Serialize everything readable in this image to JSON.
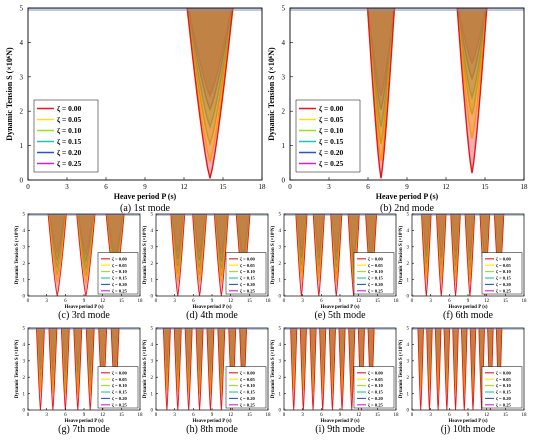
{
  "chart_data": [
    {
      "type": "area",
      "caption": "(a) 1st mode",
      "xlabel": "Heave period P (s)",
      "ylabel": "Dynamic Tension S (×10⁶N)",
      "xlim": [
        0,
        18
      ],
      "ylim": [
        0,
        5
      ],
      "xticks": [
        "0",
        "3",
        "6",
        "9",
        "12",
        "15",
        "18"
      ],
      "yticks": [
        "0",
        "1",
        "2",
        "3",
        "4",
        "5"
      ],
      "legend_placement": "left",
      "series": [
        {
          "name": "ζ = 0.00",
          "color": "#e8151b",
          "resonances": [
            {
              "x": 14.0,
              "ymin": 0.05,
              "hw": 2.3
            }
          ]
        },
        {
          "name": "ζ = 0.05",
          "color": "#ffe300",
          "resonances": [
            {
              "x": 14.0,
              "ymin": 0.55,
              "hw": 2.4
            }
          ]
        },
        {
          "name": "ζ = 0.10",
          "color": "#9be020",
          "resonances": [
            {
              "x": 14.0,
              "ymin": 1.05,
              "hw": 2.45
            }
          ]
        },
        {
          "name": "ζ = 0.15",
          "color": "#20c4b0",
          "resonances": [
            {
              "x": 14.0,
              "ymin": 1.55,
              "hw": 2.5
            }
          ]
        },
        {
          "name": "ζ = 0.20",
          "color": "#2a55c8",
          "resonances": [
            {
              "x": 14.0,
              "ymin": 2.05,
              "hw": 2.55
            }
          ]
        },
        {
          "name": "ζ = 0.25",
          "color": "#d020d8",
          "resonances": [
            {
              "x": 14.0,
              "ymin": 2.45,
              "hw": 2.6
            }
          ]
        }
      ]
    },
    {
      "type": "area",
      "caption": "(b) 2nd mode",
      "xlabel": "Heave period P (s)",
      "ylabel": "Dynamic Tension S (×10⁶N)",
      "xlim": [
        0,
        18
      ],
      "ylim": [
        0,
        5
      ],
      "xticks": [
        "0",
        "3",
        "6",
        "9",
        "12",
        "15",
        "18"
      ],
      "yticks": [
        "0",
        "1",
        "2",
        "3",
        "4",
        "5"
      ],
      "legend_placement": "left",
      "series": [
        {
          "name": "ζ = 0.00",
          "color": "#e8151b",
          "resonances": [
            {
              "x": 7.0,
              "ymin": 0.05,
              "hw": 1.35
            },
            {
              "x": 14.0,
              "ymin": 0.2,
              "hw": 1.5
            }
          ]
        },
        {
          "name": "ζ = 0.05",
          "color": "#ffe300",
          "resonances": [
            {
              "x": 7.0,
              "ymin": 0.55,
              "hw": 1.4
            },
            {
              "x": 14.0,
              "ymin": 1.2,
              "hw": 1.6
            }
          ]
        },
        {
          "name": "ζ = 0.10",
          "color": "#9be020",
          "resonances": [
            {
              "x": 7.0,
              "ymin": 1.05,
              "hw": 1.45
            },
            {
              "x": 14.0,
              "ymin": 1.9,
              "hw": 1.7
            }
          ]
        },
        {
          "name": "ζ = 0.15",
          "color": "#20c4b0",
          "resonances": [
            {
              "x": 7.0,
              "ymin": 1.55,
              "hw": 1.5
            },
            {
              "x": 14.0,
              "ymin": 2.4,
              "hw": 1.8
            }
          ]
        },
        {
          "name": "ζ = 0.20",
          "color": "#2a55c8",
          "resonances": [
            {
              "x": 7.0,
              "ymin": 2.05,
              "hw": 1.55
            },
            {
              "x": 14.0,
              "ymin": 2.95,
              "hw": 1.9
            }
          ]
        },
        {
          "name": "ζ = 0.25",
          "color": "#d020d8",
          "resonances": [
            {
              "x": 7.0,
              "ymin": 2.45,
              "hw": 1.6
            },
            {
              "x": 14.0,
              "ymin": 3.4,
              "hw": 2.0
            }
          ]
        }
      ]
    },
    {
      "type": "area",
      "caption": "(c) 3rd mode",
      "xlabel": "Heave period P (s)",
      "ylabel": "Dynamic Tension S (×10⁶N)",
      "xlim": [
        0,
        18
      ],
      "ylim": [
        0,
        5
      ],
      "xticks": [
        "0",
        "3",
        "6",
        "9",
        "12",
        "15",
        "18"
      ],
      "yticks": [
        "0",
        "1",
        "2",
        "3",
        "4",
        "5"
      ],
      "legend_placement": "bottom-right",
      "resonance_periods": [
        4.7,
        9.3,
        14.0
      ],
      "damping": [
        0,
        0.05,
        0.1,
        0.15,
        0.2,
        0.25
      ],
      "legend": [
        "ζ = 0.00",
        "ζ = 0.05",
        "ζ = 0.10",
        "ζ = 0.15",
        "ζ = 0.20",
        "ζ = 0.25"
      ]
    },
    {
      "type": "area",
      "caption": "(d) 4th mode",
      "xlabel": "Heave period P (s)",
      "ylabel": "Dynamic Tension S (×10⁶N)",
      "xlim": [
        0,
        18
      ],
      "ylim": [
        0,
        5
      ],
      "xticks": [
        "0",
        "3",
        "6",
        "9",
        "12",
        "15",
        "18"
      ],
      "yticks": [
        "0",
        "1",
        "2",
        "3",
        "4",
        "5"
      ],
      "legend_placement": "bottom-right",
      "resonance_periods": [
        3.5,
        7.0,
        10.5,
        14.0
      ],
      "damping": [
        0,
        0.05,
        0.1,
        0.15,
        0.2,
        0.25
      ],
      "legend": [
        "ζ = 0.00",
        "ζ = 0.05",
        "ζ = 0.10",
        "ζ = 0.15",
        "ζ = 0.20",
        "ζ = 0.25"
      ]
    },
    {
      "type": "area",
      "caption": "(e) 5th mode",
      "xlabel": "Heave period P (s)",
      "ylabel": "Dynamic Tension S (×10⁶N)",
      "xlim": [
        0,
        18
      ],
      "ylim": [
        0,
        5
      ],
      "xticks": [
        "0",
        "3",
        "6",
        "9",
        "12",
        "15",
        "18"
      ],
      "yticks": [
        "0",
        "1",
        "2",
        "3",
        "4",
        "5"
      ],
      "legend_placement": "bottom-right",
      "resonance_periods": [
        2.8,
        5.6,
        8.4,
        11.2,
        14.0
      ],
      "damping": [
        0,
        0.05,
        0.1,
        0.15,
        0.2,
        0.25
      ],
      "legend": [
        "ζ = 0.00",
        "ζ = 0.05",
        "ζ = 0.10",
        "ζ = 0.15",
        "ζ = 0.20",
        "ζ = 0.25"
      ]
    },
    {
      "type": "area",
      "caption": "(f) 6th mode",
      "xlabel": "Heave period P (s)",
      "ylabel": "Dynamic Tension S (×10⁶N)",
      "xlim": [
        0,
        18
      ],
      "ylim": [
        0,
        5
      ],
      "xticks": [
        "0",
        "3",
        "6",
        "9",
        "12",
        "15",
        "18"
      ],
      "yticks": [
        "0",
        "1",
        "2",
        "3",
        "4",
        "5"
      ],
      "legend_placement": "bottom-right",
      "resonance_periods": [
        2.3,
        4.7,
        7.0,
        9.3,
        11.7,
        14.0
      ],
      "damping": [
        0,
        0.05,
        0.1,
        0.15,
        0.2,
        0.25
      ],
      "legend": [
        "ζ = 0.00",
        "ζ = 0.05",
        "ζ = 0.10",
        "ζ = 0.15",
        "ζ = 0.20",
        "ζ = 0.25"
      ]
    },
    {
      "type": "area",
      "caption": "(g) 7th mode",
      "xlabel": "Heave period P (s)",
      "ylabel": "Dynamic Tension S (×10⁶N)",
      "xlim": [
        0,
        18
      ],
      "ylim": [
        0,
        5
      ],
      "xticks": [
        "0",
        "3",
        "6",
        "9",
        "12",
        "15",
        "18"
      ],
      "yticks": [
        "0",
        "1",
        "2",
        "3",
        "4",
        "5"
      ],
      "legend_placement": "bottom-right",
      "resonance_periods": [
        2.0,
        4.0,
        6.0,
        8.0,
        10.0,
        12.0,
        14.0
      ],
      "damping": [
        0,
        0.05,
        0.1,
        0.15,
        0.2,
        0.25
      ],
      "legend": [
        "ζ = 0.00",
        "ζ = 0.05",
        "ζ = 0.10",
        "ζ = 0.15",
        "ζ = 0.20",
        "ζ = 0.25"
      ]
    },
    {
      "type": "area",
      "caption": "(h) 8th mode",
      "xlabel": "Heave period P (s)",
      "ylabel": "Dynamic Tension S (×10⁶N)",
      "xlim": [
        0,
        18
      ],
      "ylim": [
        0,
        5
      ],
      "xticks": [
        "0",
        "3",
        "6",
        "9",
        "12",
        "15",
        "18"
      ],
      "yticks": [
        "0",
        "1",
        "2",
        "3",
        "4",
        "5"
      ],
      "legend_placement": "bottom-right",
      "resonance_periods": [
        1.75,
        3.5,
        5.25,
        7.0,
        8.75,
        10.5,
        12.25,
        14.0
      ],
      "damping": [
        0,
        0.05,
        0.1,
        0.15,
        0.2,
        0.25
      ],
      "legend": [
        "ζ = 0.00",
        "ζ = 0.05",
        "ζ = 0.10",
        "ζ = 0.15",
        "ζ = 0.20",
        "ζ = 0.25"
      ]
    },
    {
      "type": "area",
      "caption": "(i) 9th mode",
      "xlabel": "Heave period P (s)",
      "ylabel": "Dynamic Tension S (×10⁶N)",
      "xlim": [
        0,
        18
      ],
      "ylim": [
        0,
        5
      ],
      "xticks": [
        "0",
        "3",
        "6",
        "9",
        "12",
        "15",
        "18"
      ],
      "yticks": [
        "0",
        "1",
        "2",
        "3",
        "4",
        "5"
      ],
      "legend_placement": "bottom-right",
      "resonance_periods": [
        1.56,
        3.11,
        4.67,
        6.22,
        7.78,
        9.33,
        10.89,
        12.44,
        14.0
      ],
      "damping": [
        0,
        0.05,
        0.1,
        0.15,
        0.2,
        0.25
      ],
      "legend": [
        "ζ = 0.00",
        "ζ = 0.05",
        "ζ = 0.10",
        "ζ = 0.15",
        "ζ = 0.20",
        "ζ = 0.25"
      ]
    },
    {
      "type": "area",
      "caption": "(j) 10th mode",
      "xlabel": "Heave period P (s)",
      "ylabel": "Dynamic Tension S (×10⁶N)",
      "xlim": [
        0,
        18
      ],
      "ylim": [
        0,
        5
      ],
      "xticks": [
        "0",
        "3",
        "6",
        "9",
        "12",
        "15",
        "18"
      ],
      "yticks": [
        "0",
        "1",
        "2",
        "3",
        "4",
        "5"
      ],
      "legend_placement": "bottom-right",
      "resonance_periods": [
        1.4,
        2.8,
        4.2,
        5.6,
        7.0,
        8.4,
        9.8,
        11.2,
        12.6,
        14.0
      ],
      "damping": [
        0,
        0.05,
        0.1,
        0.15,
        0.2,
        0.25
      ],
      "legend": [
        "ζ = 0.00",
        "ζ = 0.05",
        "ζ = 0.10",
        "ζ = 0.15",
        "ζ = 0.20",
        "ζ = 0.25"
      ]
    }
  ],
  "colors": {
    "damping_palette": [
      "#e8151b",
      "#ffe300",
      "#9be020",
      "#20c4b0",
      "#2a55c8",
      "#d020d8"
    ],
    "fill_top": "#7f8fc8",
    "axis": "#000000"
  }
}
